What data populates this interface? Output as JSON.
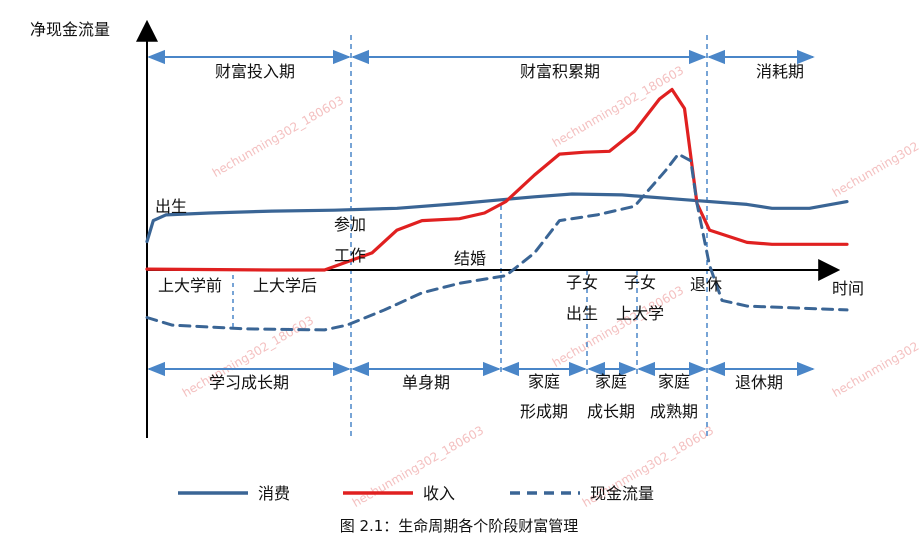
{
  "chart_data": {
    "type": "line",
    "ylabel": "净现金流量",
    "xlabel": "时间",
    "caption": "图 2.1：生命周期各个阶段财富管理",
    "top_phases": [
      "财富投入期",
      "财富积累期",
      "消耗期"
    ],
    "bottom_phases": [
      {
        "lines": [
          "学习成长期"
        ]
      },
      {
        "lines": [
          "单身期"
        ]
      },
      {
        "lines": [
          "家庭",
          "形成期"
        ]
      },
      {
        "lines": [
          "家庭",
          "成长期"
        ]
      },
      {
        "lines": [
          "家庭",
          "成熟期"
        ]
      },
      {
        "lines": [
          "退休期"
        ]
      }
    ],
    "events": [
      {
        "lines": [
          "出生"
        ]
      },
      {
        "lines": [
          "上大学前"
        ]
      },
      {
        "lines": [
          "上大学后"
        ]
      },
      {
        "lines": [
          "参加",
          "工作"
        ]
      },
      {
        "lines": [
          "结婚"
        ]
      },
      {
        "lines": [
          "子女",
          "出生"
        ]
      },
      {
        "lines": [
          "子女",
          "上大学"
        ]
      },
      {
        "lines": [
          "退休"
        ]
      }
    ],
    "series": [
      {
        "name": "消费",
        "color": "#3A6595",
        "style": "solid",
        "points": [
          [
            0,
            0.3
          ],
          [
            0.5,
            0.52
          ],
          [
            1.5,
            0.58
          ],
          [
            5,
            0.6
          ],
          [
            10,
            0.62
          ],
          [
            15,
            0.63
          ],
          [
            20,
            0.65
          ],
          [
            25,
            0.7
          ],
          [
            31,
            0.77
          ],
          [
            34,
            0.8
          ],
          [
            38,
            0.79
          ],
          [
            43,
            0.74
          ],
          [
            48,
            0.69
          ],
          [
            50,
            0.65
          ],
          [
            53,
            0.65
          ],
          [
            56,
            0.72
          ]
        ]
      },
      {
        "name": "收入",
        "color": "#E02020",
        "style": "solid",
        "points": [
          [
            0,
            0.01
          ],
          [
            10,
            0.0
          ],
          [
            14.2,
            0.0
          ],
          [
            18,
            0.18
          ],
          [
            20,
            0.42
          ],
          [
            22,
            0.52
          ],
          [
            25,
            0.54
          ],
          [
            27,
            0.6
          ],
          [
            28.7,
            0.72
          ],
          [
            31,
            1.0
          ],
          [
            33,
            1.22
          ],
          [
            35,
            1.24
          ],
          [
            37,
            1.25
          ],
          [
            39,
            1.46
          ],
          [
            41,
            1.8
          ],
          [
            42,
            1.9
          ],
          [
            43,
            1.7
          ],
          [
            44,
            0.7
          ],
          [
            45,
            0.42
          ],
          [
            48,
            0.29
          ],
          [
            50,
            0.27
          ],
          [
            56,
            0.27
          ]
        ]
      },
      {
        "name": "现金流量",
        "color": "#3A6595",
        "style": "dashed",
        "points": [
          [
            0,
            -0.5
          ],
          [
            2,
            -0.58
          ],
          [
            8,
            -0.62
          ],
          [
            14.2,
            -0.63
          ],
          [
            16,
            -0.58
          ],
          [
            19,
            -0.42
          ],
          [
            22,
            -0.24
          ],
          [
            25,
            -0.14
          ],
          [
            28.7,
            -0.06
          ],
          [
            31,
            0.18
          ],
          [
            33,
            0.52
          ],
          [
            36,
            0.58
          ],
          [
            39,
            0.67
          ],
          [
            41.5,
            1.05
          ],
          [
            42.5,
            1.22
          ],
          [
            43.5,
            1.15
          ],
          [
            44,
            0.7
          ],
          [
            45,
            0.05
          ],
          [
            46,
            -0.32
          ],
          [
            48,
            -0.38
          ],
          [
            52,
            -0.4
          ],
          [
            56,
            -0.42
          ]
        ]
      }
    ],
    "x_range": [
      0,
      56
    ],
    "y_range": [
      -1.8,
      2.2
    ],
    "grid": false,
    "legend_position": "bottom"
  },
  "watermark": "hechunming302_180603"
}
